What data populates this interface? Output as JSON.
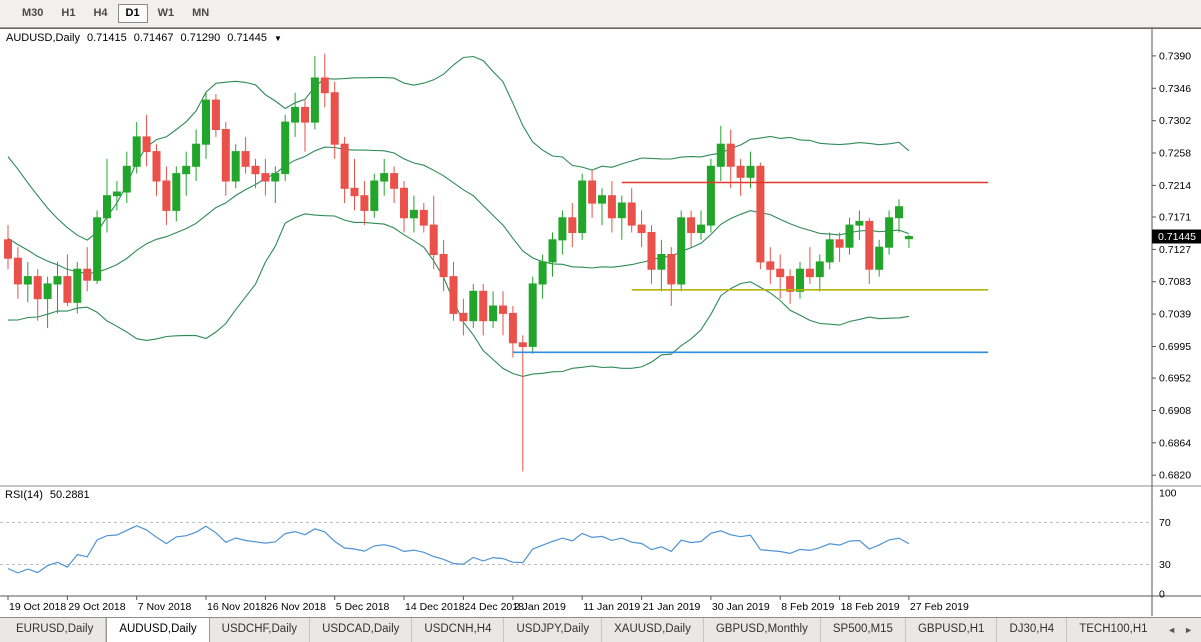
{
  "toolbar": {
    "timeframes": [
      {
        "label": "M30",
        "active": false
      },
      {
        "label": "H1",
        "active": false
      },
      {
        "label": "H4",
        "active": false
      },
      {
        "label": "D1",
        "active": true
      },
      {
        "label": "W1",
        "active": false
      },
      {
        "label": "MN",
        "active": false
      }
    ]
  },
  "chart": {
    "title_symbol": "AUDUSD,Daily",
    "ohlc": {
      "open": "0.71415",
      "high": "0.71467",
      "low": "0.71290",
      "close": "0.71445"
    },
    "last_price": "0.71445",
    "price_axis_labels": [
      "0.7390",
      "0.7346",
      "0.7302",
      "0.7258",
      "0.7214",
      "0.7171",
      "0.7127",
      "0.7083",
      "0.7039",
      "0.6995",
      "0.6952",
      "0.6908",
      "0.6864",
      "0.6820"
    ]
  },
  "rsi_panel": {
    "label": "RSI(14)",
    "value": "50.2881",
    "axis_labels": [
      "100",
      "70",
      "30",
      "0"
    ],
    "levels": [
      70,
      30
    ]
  },
  "date_axis": {
    "ticks": [
      {
        "label": "19 Oct 2018",
        "index": 0
      },
      {
        "label": "29 Oct 2018",
        "index": 6
      },
      {
        "label": "7 Nov 2018",
        "index": 13
      },
      {
        "label": "16 Nov 2018",
        "index": 20
      },
      {
        "label": "26 Nov 2018",
        "index": 26
      },
      {
        "label": "5 Dec 2018",
        "index": 33
      },
      {
        "label": "14 Dec 2018",
        "index": 40
      },
      {
        "label": "24 Dec 2018",
        "index": 46
      },
      {
        "label": "2 Jan 2019",
        "index": 51
      },
      {
        "label": "11 Jan 2019",
        "index": 58
      },
      {
        "label": "21 Jan 2019",
        "index": 64
      },
      {
        "label": "30 Jan 2019",
        "index": 71
      },
      {
        "label": "8 Feb 2019",
        "index": 78
      },
      {
        "label": "18 Feb 2019",
        "index": 84
      },
      {
        "label": "27 Feb 2019",
        "index": 91
      }
    ]
  },
  "tabs": {
    "items": [
      {
        "label": "EURUSD,Daily",
        "active": false
      },
      {
        "label": "AUDUSD,Daily",
        "active": true
      },
      {
        "label": "USDCHF,Daily",
        "active": false
      },
      {
        "label": "USDCAD,Daily",
        "active": false
      },
      {
        "label": "USDCNH,H4",
        "active": false
      },
      {
        "label": "USDJPY,Daily",
        "active": false
      },
      {
        "label": "XAUUSD,Daily",
        "active": false
      },
      {
        "label": "GBPUSD,Monthly",
        "active": false
      },
      {
        "label": "SP500,M15",
        "active": false
      },
      {
        "label": "GBPUSD,H1",
        "active": false
      },
      {
        "label": "DJ30,H4",
        "active": false
      },
      {
        "label": "TECH100,H1",
        "active": false
      }
    ],
    "scroll_left": "◄",
    "scroll_right": "►"
  },
  "colors": {
    "bull": "#22a52b",
    "bear": "#e9514a",
    "bollinger": "#2e8b57",
    "rsi_line": "#4f94d4",
    "hline_red": "#e0392d",
    "hline_yellow": "#b4b40a",
    "hline_blue": "#2d8de0"
  },
  "chart_data": {
    "type": "candlestick",
    "symbol": "AUDUSD",
    "timeframe": "Daily",
    "title": "AUDUSD,Daily 0.71415 0.71467 0.71290 0.71445",
    "price_range": {
      "top": 0.7428,
      "bottom": 0.6808
    },
    "indicators": {
      "bollinger": {
        "period": 20,
        "deviations": 2
      },
      "rsi": {
        "period": 14
      }
    },
    "band_seed_closes": [
      0.725,
      0.724,
      0.723,
      0.721,
      0.719,
      0.718,
      0.716,
      0.714,
      0.713,
      0.711,
      0.709,
      0.707,
      0.706,
      0.708,
      0.71,
      0.711,
      0.712,
      0.713,
      0.7125
    ],
    "candles": [
      [
        0.714,
        0.716,
        0.71,
        0.7115
      ],
      [
        0.7115,
        0.713,
        0.706,
        0.708
      ],
      [
        0.708,
        0.711,
        0.7055,
        0.709
      ],
      [
        0.709,
        0.71,
        0.703,
        0.706
      ],
      [
        0.706,
        0.709,
        0.702,
        0.708
      ],
      [
        0.708,
        0.711,
        0.704,
        0.709
      ],
      [
        0.709,
        0.712,
        0.705,
        0.7055
      ],
      [
        0.7055,
        0.711,
        0.704,
        0.71
      ],
      [
        0.71,
        0.713,
        0.707,
        0.7085
      ],
      [
        0.7085,
        0.718,
        0.708,
        0.717
      ],
      [
        0.717,
        0.725,
        0.715,
        0.72
      ],
      [
        0.72,
        0.722,
        0.718,
        0.7205
      ],
      [
        0.7205,
        0.726,
        0.719,
        0.724
      ],
      [
        0.724,
        0.73,
        0.723,
        0.728
      ],
      [
        0.728,
        0.731,
        0.724,
        0.726
      ],
      [
        0.726,
        0.727,
        0.72,
        0.722
      ],
      [
        0.722,
        0.724,
        0.716,
        0.718
      ],
      [
        0.718,
        0.724,
        0.7165,
        0.723
      ],
      [
        0.723,
        0.726,
        0.72,
        0.724
      ],
      [
        0.724,
        0.729,
        0.722,
        0.727
      ],
      [
        0.727,
        0.734,
        0.725,
        0.733
      ],
      [
        0.733,
        0.7338,
        0.728,
        0.729
      ],
      [
        0.729,
        0.73,
        0.72,
        0.722
      ],
      [
        0.722,
        0.727,
        0.721,
        0.726
      ],
      [
        0.726,
        0.728,
        0.723,
        0.724
      ],
      [
        0.724,
        0.725,
        0.721,
        0.723
      ],
      [
        0.723,
        0.725,
        0.72,
        0.722
      ],
      [
        0.722,
        0.724,
        0.719,
        0.723
      ],
      [
        0.723,
        0.731,
        0.722,
        0.73
      ],
      [
        0.73,
        0.734,
        0.728,
        0.732
      ],
      [
        0.732,
        0.733,
        0.726,
        0.73
      ],
      [
        0.73,
        0.739,
        0.729,
        0.736
      ],
      [
        0.736,
        0.7393,
        0.732,
        0.734
      ],
      [
        0.734,
        0.7355,
        0.725,
        0.727
      ],
      [
        0.727,
        0.728,
        0.719,
        0.721
      ],
      [
        0.721,
        0.725,
        0.718,
        0.72
      ],
      [
        0.72,
        0.722,
        0.716,
        0.718
      ],
      [
        0.718,
        0.723,
        0.717,
        0.722
      ],
      [
        0.722,
        0.725,
        0.72,
        0.723
      ],
      [
        0.723,
        0.724,
        0.719,
        0.721
      ],
      [
        0.721,
        0.722,
        0.715,
        0.717
      ],
      [
        0.717,
        0.72,
        0.715,
        0.718
      ],
      [
        0.718,
        0.719,
        0.715,
        0.716
      ],
      [
        0.716,
        0.72,
        0.71,
        0.712
      ],
      [
        0.712,
        0.714,
        0.707,
        0.709
      ],
      [
        0.709,
        0.711,
        0.703,
        0.704
      ],
      [
        0.704,
        0.706,
        0.701,
        0.703
      ],
      [
        0.703,
        0.708,
        0.702,
        0.707
      ],
      [
        0.707,
        0.708,
        0.701,
        0.703
      ],
      [
        0.703,
        0.707,
        0.702,
        0.705
      ],
      [
        0.705,
        0.707,
        0.701,
        0.704
      ],
      [
        0.704,
        0.705,
        0.698,
        0.7
      ],
      [
        0.7,
        0.701,
        0.6825,
        0.6995
      ],
      [
        0.6995,
        0.709,
        0.6985,
        0.708
      ],
      [
        0.708,
        0.712,
        0.706,
        0.711
      ],
      [
        0.711,
        0.715,
        0.709,
        0.714
      ],
      [
        0.714,
        0.718,
        0.712,
        0.717
      ],
      [
        0.717,
        0.719,
        0.713,
        0.715
      ],
      [
        0.715,
        0.723,
        0.714,
        0.722
      ],
      [
        0.722,
        0.7235,
        0.717,
        0.719
      ],
      [
        0.719,
        0.721,
        0.716,
        0.72
      ],
      [
        0.72,
        0.722,
        0.715,
        0.717
      ],
      [
        0.717,
        0.72,
        0.714,
        0.719
      ],
      [
        0.719,
        0.721,
        0.715,
        0.716
      ],
      [
        0.716,
        0.718,
        0.713,
        0.715
      ],
      [
        0.715,
        0.716,
        0.708,
        0.71
      ],
      [
        0.71,
        0.714,
        0.707,
        0.712
      ],
      [
        0.712,
        0.713,
        0.705,
        0.708
      ],
      [
        0.708,
        0.718,
        0.707,
        0.717
      ],
      [
        0.717,
        0.718,
        0.713,
        0.715
      ],
      [
        0.715,
        0.718,
        0.714,
        0.716
      ],
      [
        0.716,
        0.725,
        0.715,
        0.724
      ],
      [
        0.724,
        0.7295,
        0.722,
        0.727
      ],
      [
        0.727,
        0.729,
        0.721,
        0.724
      ],
      [
        0.724,
        0.725,
        0.72,
        0.7225
      ],
      [
        0.7225,
        0.726,
        0.721,
        0.724
      ],
      [
        0.724,
        0.7245,
        0.71,
        0.711
      ],
      [
        0.711,
        0.713,
        0.708,
        0.71
      ],
      [
        0.71,
        0.712,
        0.706,
        0.709
      ],
      [
        0.709,
        0.71,
        0.7053,
        0.707
      ],
      [
        0.707,
        0.711,
        0.706,
        0.71
      ],
      [
        0.71,
        0.713,
        0.708,
        0.709
      ],
      [
        0.709,
        0.712,
        0.707,
        0.711
      ],
      [
        0.711,
        0.715,
        0.71,
        0.714
      ],
      [
        0.714,
        0.715,
        0.711,
        0.713
      ],
      [
        0.713,
        0.717,
        0.712,
        0.716
      ],
      [
        0.716,
        0.718,
        0.714,
        0.7165
      ],
      [
        0.7165,
        0.717,
        0.708,
        0.71
      ],
      [
        0.71,
        0.714,
        0.709,
        0.713
      ],
      [
        0.713,
        0.718,
        0.712,
        0.717
      ],
      [
        0.717,
        0.7195,
        0.715,
        0.7185
      ],
      [
        0.71415,
        0.71467,
        0.7129,
        0.71445
      ]
    ],
    "hlines": [
      {
        "name": "resistance-red",
        "color_key": "hline_red",
        "price": 0.7218,
        "from_index": 62,
        "to_index": 99
      },
      {
        "name": "support-yellow",
        "color_key": "hline_yellow",
        "price": 0.7072,
        "from_index": 63,
        "to_index": 99
      },
      {
        "name": "support-blue",
        "color_key": "hline_blue",
        "price": 0.6987,
        "from_index": 51,
        "to_index": 99
      }
    ],
    "rsi_range": [
      0,
      100
    ]
  }
}
